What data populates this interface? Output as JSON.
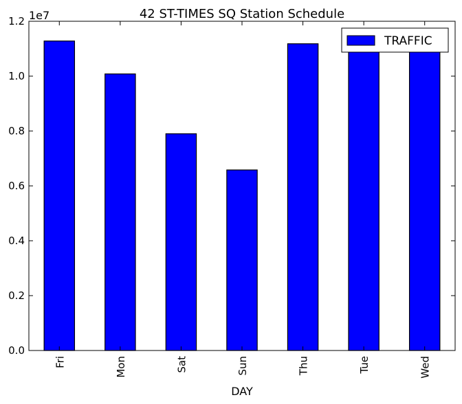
{
  "chart_data": {
    "type": "bar",
    "title": "42 ST-TIMES SQ Station Schedule",
    "xlabel": "DAY",
    "ylabel": "",
    "y_multiplier_label": "1e7",
    "categories": [
      "Fri",
      "Mon",
      "Sat",
      "Sun",
      "Thu",
      "Tue",
      "Wed"
    ],
    "series": [
      {
        "name": "TRAFFIC",
        "values": [
          11280000,
          10080000,
          7900000,
          6580000,
          11180000,
          10880000,
          10880000
        ],
        "color": "#0000ff"
      }
    ],
    "ylim": [
      0,
      12000000
    ],
    "yticks": [
      0,
      2000000,
      4000000,
      6000000,
      8000000,
      10000000,
      12000000
    ],
    "ytick_labels": [
      "0.0",
      "0.2",
      "0.4",
      "0.6",
      "0.8",
      "1.0",
      "1.2"
    ],
    "grid": false,
    "legend_position": "top-right"
  }
}
